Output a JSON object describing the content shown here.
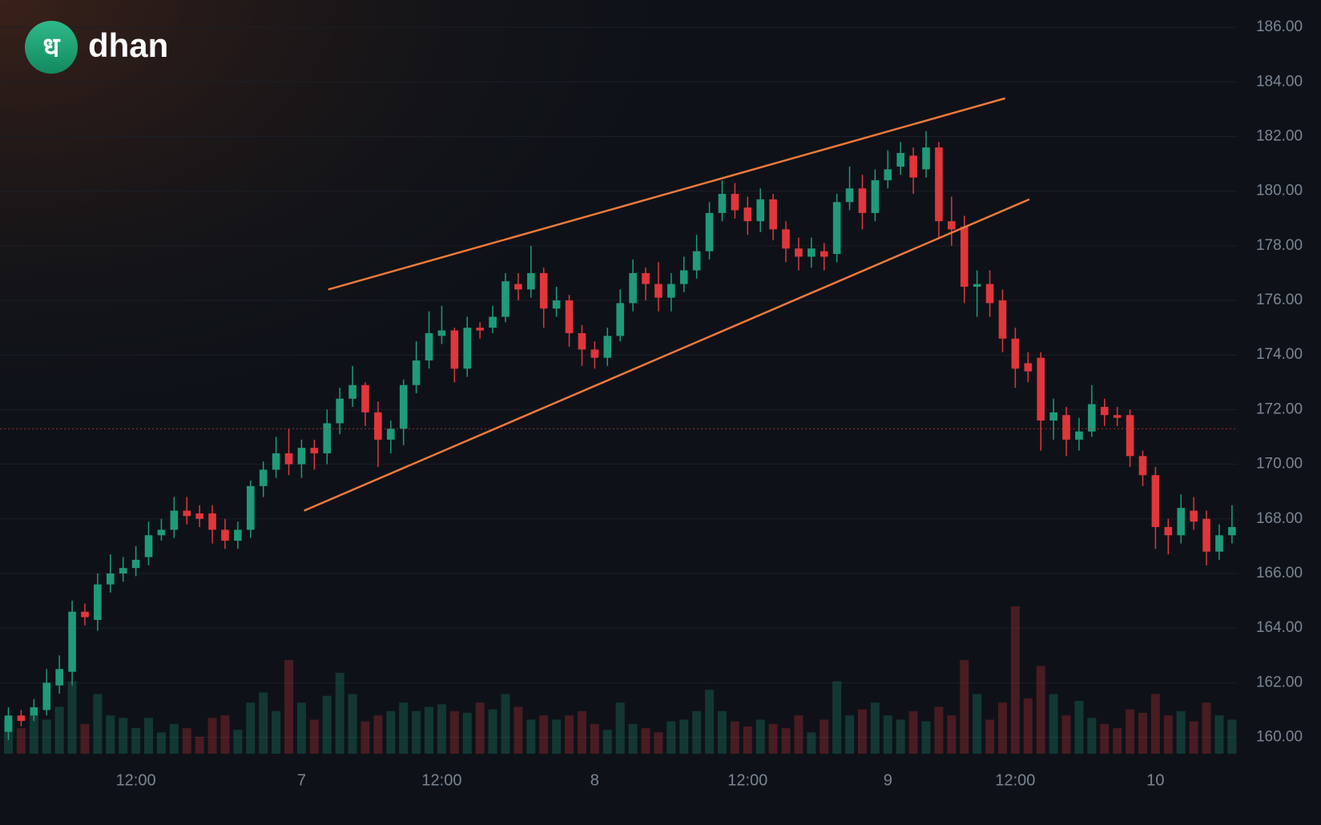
{
  "brand": {
    "icon": "ध",
    "text": "dhan"
  },
  "chart_data": {
    "type": "candlestick",
    "up_color": "#1f9a7a",
    "down_color": "#e0363c",
    "grid": true,
    "ylim": [
      159.4,
      187.0
    ],
    "yticks": [
      {
        "value": 160,
        "label": "160.00"
      },
      {
        "value": 162,
        "label": "162.00"
      },
      {
        "value": 164,
        "label": "164.00"
      },
      {
        "value": 166,
        "label": "166.00"
      },
      {
        "value": 168,
        "label": "168.00"
      },
      {
        "value": 170,
        "label": "170.00"
      },
      {
        "value": 172,
        "label": "172.00"
      },
      {
        "value": 174,
        "label": "174.00"
      },
      {
        "value": 176,
        "label": "176.00"
      },
      {
        "value": 178,
        "label": "178.00"
      },
      {
        "value": 180,
        "label": "180.00"
      },
      {
        "value": 182,
        "label": "182.00"
      },
      {
        "value": 184,
        "label": "184.00"
      },
      {
        "value": 186,
        "label": "186.00"
      }
    ],
    "categories": [
      null,
      null,
      null,
      null,
      null,
      null,
      null,
      null,
      null,
      null,
      "12:00",
      null,
      null,
      null,
      null,
      null,
      null,
      null,
      null,
      null,
      null,
      null,
      null,
      "7",
      null,
      null,
      null,
      null,
      null,
      null,
      null,
      null,
      null,
      null,
      "12:00",
      null,
      null,
      null,
      null,
      null,
      null,
      null,
      null,
      null,
      null,
      null,
      "8",
      null,
      null,
      null,
      null,
      null,
      null,
      null,
      null,
      null,
      null,
      null,
      "12:00",
      null,
      null,
      null,
      null,
      null,
      null,
      null,
      null,
      null,
      null,
      "9",
      null,
      null,
      null,
      null,
      null,
      null,
      null,
      null,
      null,
      "12:00",
      null,
      null,
      null,
      null,
      null,
      null,
      null,
      null,
      null,
      null,
      "10",
      null,
      null,
      null,
      null,
      null,
      null
    ],
    "open": [
      160.2,
      160.8,
      160.8,
      161.0,
      161.9,
      162.4,
      164.6,
      164.3,
      165.6,
      166.0,
      166.2,
      166.6,
      167.4,
      167.6,
      168.3,
      168.2,
      168.2,
      167.6,
      167.2,
      167.6,
      169.2,
      169.8,
      170.4,
      170.0,
      170.6,
      170.4,
      171.5,
      172.4,
      172.9,
      171.9,
      170.9,
      171.3,
      172.9,
      173.8,
      174.7,
      174.9,
      173.5,
      175.0,
      175.0,
      175.4,
      176.6,
      176.4,
      177.0,
      175.7,
      176.0,
      174.8,
      174.2,
      173.9,
      174.7,
      175.9,
      177.0,
      176.6,
      176.1,
      176.6,
      177.1,
      177.8,
      179.2,
      179.9,
      179.4,
      178.9,
      179.7,
      178.6,
      177.9,
      177.6,
      177.8,
      177.7,
      179.6,
      180.1,
      179.2,
      180.4,
      180.9,
      181.3,
      180.8,
      181.6,
      178.9,
      178.7,
      176.5,
      176.6,
      176.0,
      174.6,
      173.7,
      173.9,
      171.6,
      171.8,
      170.9,
      171.2,
      172.1,
      171.8,
      171.8,
      170.3,
      169.6,
      167.7,
      167.4,
      168.3,
      168.0,
      166.8,
      167.4
    ],
    "high": [
      161.1,
      161.0,
      161.4,
      162.5,
      163.0,
      165.0,
      164.9,
      166.0,
      166.7,
      166.6,
      167.0,
      167.9,
      168.0,
      168.8,
      168.8,
      168.5,
      168.5,
      168.0,
      167.9,
      169.4,
      170.1,
      171.0,
      171.3,
      170.9,
      170.9,
      172.0,
      172.8,
      173.6,
      173.0,
      172.3,
      171.6,
      173.1,
      174.5,
      175.6,
      175.8,
      175.0,
      175.4,
      175.2,
      175.8,
      177.0,
      177.0,
      178.0,
      177.2,
      176.5,
      176.2,
      175.1,
      174.5,
      175.0,
      176.4,
      177.5,
      177.2,
      177.4,
      177.0,
      177.6,
      178.4,
      179.6,
      180.4,
      180.3,
      179.8,
      180.1,
      179.9,
      178.9,
      178.3,
      178.3,
      178.1,
      179.9,
      180.9,
      180.6,
      180.8,
      181.5,
      181.8,
      181.6,
      182.2,
      181.8,
      179.8,
      179.1,
      177.1,
      177.1,
      176.4,
      175.0,
      174.1,
      174.1,
      172.4,
      172.1,
      171.7,
      172.9,
      172.4,
      172.1,
      172.0,
      170.5,
      169.9,
      168.0,
      168.9,
      168.8,
      168.3,
      167.8,
      168.5
    ],
    "low": [
      159.9,
      160.4,
      160.6,
      160.8,
      161.6,
      161.9,
      164.1,
      163.9,
      165.3,
      165.7,
      165.9,
      166.3,
      167.2,
      167.3,
      167.8,
      167.7,
      167.1,
      166.9,
      166.9,
      167.3,
      168.8,
      169.5,
      169.6,
      169.5,
      169.8,
      170.0,
      171.1,
      172.1,
      171.4,
      169.9,
      170.4,
      170.7,
      172.6,
      173.5,
      174.4,
      173.0,
      173.2,
      174.6,
      174.8,
      175.2,
      176.0,
      176.1,
      175.0,
      175.4,
      174.3,
      173.6,
      173.5,
      173.6,
      174.5,
      175.6,
      176.0,
      175.6,
      175.6,
      176.3,
      176.8,
      177.5,
      178.9,
      179.0,
      178.4,
      178.5,
      178.2,
      177.4,
      177.1,
      177.2,
      177.1,
      177.4,
      179.3,
      178.6,
      178.9,
      180.1,
      180.6,
      179.9,
      180.5,
      178.3,
      178.0,
      175.9,
      175.4,
      175.4,
      174.1,
      172.8,
      173.0,
      170.5,
      170.9,
      170.3,
      170.5,
      171.0,
      171.4,
      171.4,
      169.9,
      169.2,
      166.9,
      166.7,
      167.1,
      167.6,
      166.3,
      166.5,
      167.1
    ],
    "close": [
      160.8,
      160.6,
      161.1,
      162.0,
      162.5,
      164.6,
      164.4,
      165.6,
      166.0,
      166.2,
      166.5,
      167.4,
      167.6,
      168.3,
      168.1,
      168.0,
      167.6,
      167.2,
      167.6,
      169.2,
      169.8,
      170.4,
      170.0,
      170.6,
      170.4,
      171.5,
      172.4,
      172.9,
      171.9,
      170.9,
      171.3,
      172.9,
      173.8,
      174.8,
      174.9,
      173.5,
      175.0,
      174.9,
      175.4,
      176.7,
      176.4,
      177.0,
      175.7,
      176.0,
      174.8,
      174.2,
      173.9,
      174.7,
      175.9,
      177.0,
      176.6,
      176.1,
      176.6,
      177.1,
      177.8,
      179.2,
      179.9,
      179.3,
      178.9,
      179.7,
      178.6,
      177.9,
      177.6,
      177.9,
      177.6,
      179.6,
      180.1,
      179.2,
      180.4,
      180.8,
      181.4,
      180.5,
      181.6,
      178.9,
      178.6,
      176.5,
      176.6,
      175.9,
      174.6,
      173.5,
      173.4,
      171.6,
      171.9,
      170.9,
      171.2,
      172.2,
      171.8,
      171.7,
      170.3,
      169.6,
      167.7,
      167.4,
      168.4,
      167.9,
      166.8,
      167.4,
      167.7
    ],
    "volume": [
      40,
      30,
      45,
      40,
      55,
      85,
      35,
      70,
      45,
      42,
      30,
      42,
      25,
      35,
      30,
      20,
      42,
      45,
      28,
      60,
      72,
      50,
      110,
      60,
      40,
      68,
      95,
      70,
      38,
      45,
      50,
      60,
      50,
      55,
      58,
      50,
      48,
      60,
      52,
      70,
      55,
      40,
      45,
      40,
      45,
      50,
      35,
      28,
      60,
      35,
      30,
      25,
      38,
      40,
      50,
      75,
      50,
      38,
      32,
      40,
      35,
      30,
      45,
      25,
      40,
      85,
      45,
      52,
      60,
      45,
      40,
      50,
      38,
      55,
      45,
      110,
      70,
      40,
      60,
      173,
      65,
      103,
      70,
      45,
      62,
      42,
      35,
      30,
      52,
      48,
      70,
      45,
      50,
      38,
      60,
      45,
      40
    ],
    "price_line": {
      "value": 171.3,
      "color": "#c0392b"
    },
    "trendlines": [
      {
        "color": "#f07a3c",
        "x": [
          25.1,
          78.2
        ],
        "y": [
          176.4,
          183.4
        ]
      },
      {
        "color": "#f07a3c",
        "x": [
          23.2,
          80.1
        ],
        "y": [
          168.3,
          179.7
        ]
      }
    ]
  }
}
